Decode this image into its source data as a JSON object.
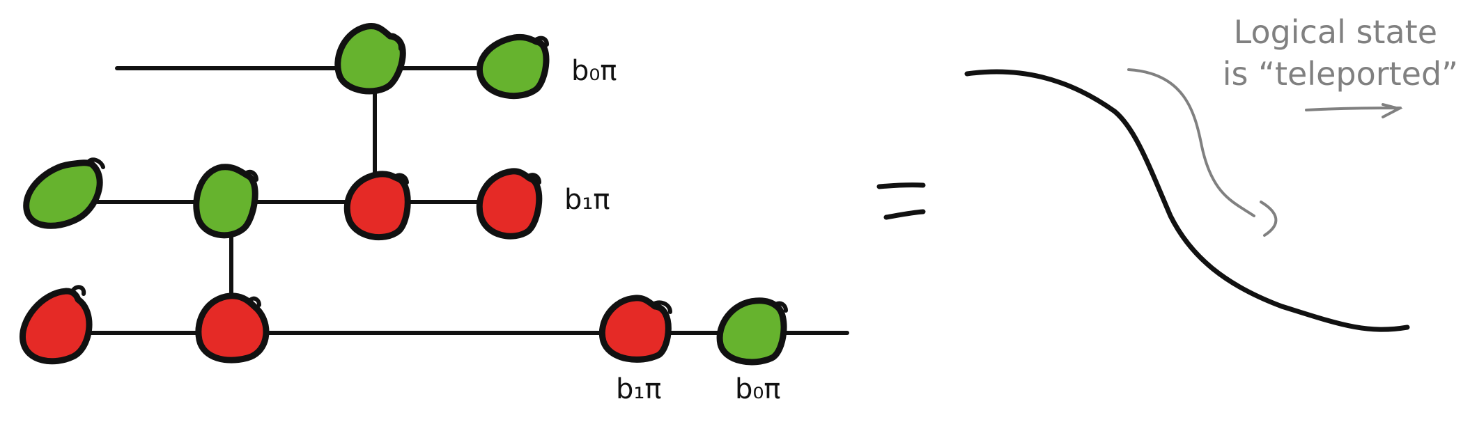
{
  "colors": {
    "z_spider": "#66b32e",
    "x_spider": "#e52a26",
    "ink": "#111111",
    "annotation": "#808080"
  },
  "diagram": {
    "spiders": [
      {
        "id": "s-top-1",
        "kind": "z",
        "wire": 0
      },
      {
        "id": "s-top-2",
        "kind": "z",
        "wire": 0
      },
      {
        "id": "s-mid-1",
        "kind": "z",
        "wire": 1
      },
      {
        "id": "s-mid-2",
        "kind": "z",
        "wire": 1
      },
      {
        "id": "s-mid-3",
        "kind": "x",
        "wire": 1
      },
      {
        "id": "s-mid-4",
        "kind": "x",
        "wire": 1
      },
      {
        "id": "s-bot-1",
        "kind": "x",
        "wire": 2
      },
      {
        "id": "s-bot-2",
        "kind": "x",
        "wire": 2
      },
      {
        "id": "s-bot-3",
        "kind": "x",
        "wire": 2
      },
      {
        "id": "s-bot-4",
        "kind": "z",
        "wire": 2
      }
    ],
    "labels": {
      "top_phase": "b₀π",
      "mid_phase": "b₁π",
      "bot_phase_a": "b₁π",
      "bot_phase_b": "b₀π"
    },
    "equals_sign": "=",
    "annotation": {
      "line1": "Logical state",
      "line2": "is “teleported”"
    }
  }
}
